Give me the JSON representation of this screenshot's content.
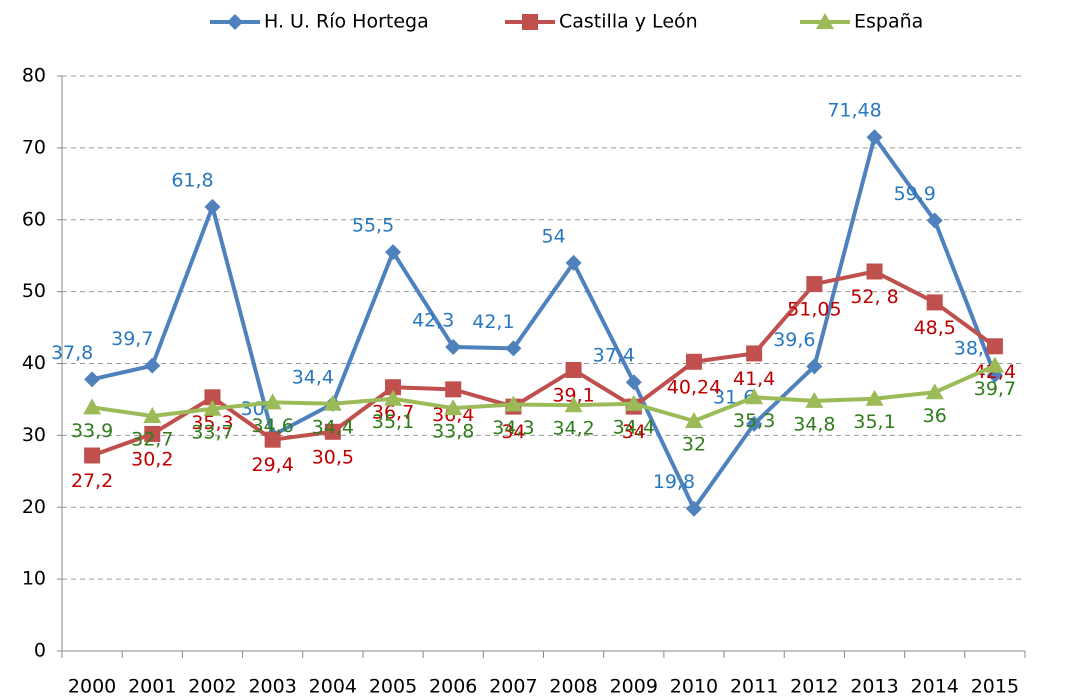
{
  "chart_data": {
    "type": "line",
    "categories": [
      "2000",
      "2001",
      "2002",
      "2003",
      "2004",
      "2005",
      "2006",
      "2007",
      "2008",
      "2009",
      "2010",
      "2011",
      "2012",
      "2013",
      "2014",
      "2015"
    ],
    "series": [
      {
        "name": "H. U. Río Hortega",
        "color": "#4f81bd",
        "label_color": "#2878c0",
        "marker": "diamond",
        "values": [
          37.8,
          39.7,
          61.8,
          30,
          34.4,
          55.5,
          42.3,
          42.1,
          54,
          37.4,
          19.8,
          31.6,
          39.6,
          71.48,
          59.9,
          38.4
        ],
        "value_labels": [
          "37,8",
          "39,7",
          "61,8",
          "30",
          "34,4",
          "55,5",
          "42,3",
          "42,1",
          "54",
          "37,4",
          "19,8",
          "31,6",
          "39,6",
          "71,48",
          "59,9",
          "38,4"
        ]
      },
      {
        "name": "Castilla y León",
        "color": "#c0504d",
        "label_color": "#c00000",
        "marker": "square",
        "values": [
          27.2,
          30.2,
          35.3,
          29.4,
          30.5,
          36.7,
          36.4,
          34,
          39.1,
          34,
          40.24,
          41.4,
          51.05,
          52.8,
          48.5,
          42.4
        ],
        "value_labels": [
          "27,2",
          "30,2",
          "35,3",
          "29,4",
          "30,5",
          "36,7",
          "36,4",
          "34",
          "39,1",
          "34",
          "40,24",
          "41,4",
          "51,05",
          "52, 8",
          "48,5",
          "42,4"
        ]
      },
      {
        "name": "España",
        "color": "#9bbb59",
        "label_color": "#2e7d1a",
        "marker": "triangle",
        "values": [
          33.9,
          32.7,
          33.7,
          34.6,
          34.4,
          35.1,
          33.8,
          34.3,
          34.2,
          34.4,
          32,
          35.3,
          34.8,
          35.1,
          36,
          39.7
        ],
        "value_labels": [
          "33,9",
          "32,7",
          "33,7",
          "34,6",
          "34,4",
          "35,1",
          "33,8",
          "34,3",
          "34,2",
          "34,4",
          "32",
          "35,3",
          "34,8",
          "35,1",
          "36",
          "39,7"
        ]
      }
    ],
    "ylim": [
      0,
      80
    ],
    "yticks": [
      0,
      10,
      20,
      30,
      40,
      50,
      60,
      70,
      80
    ],
    "grid": true,
    "legend": "top"
  }
}
